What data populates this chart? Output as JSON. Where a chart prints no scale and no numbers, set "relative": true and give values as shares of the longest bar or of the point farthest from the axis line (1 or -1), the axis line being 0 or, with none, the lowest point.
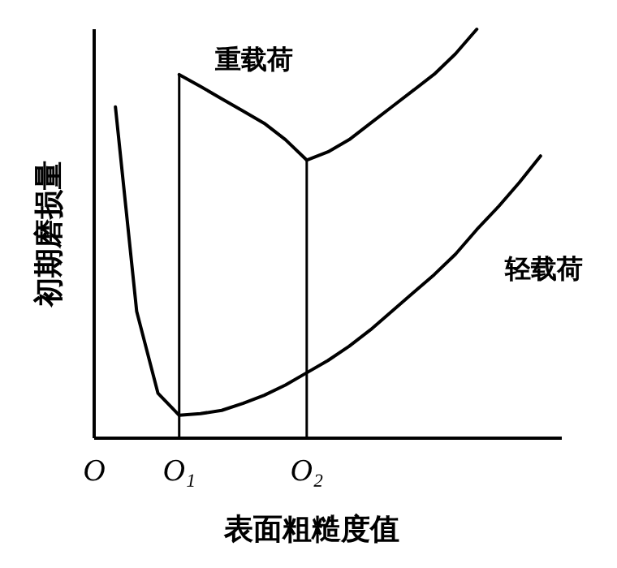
{
  "chart_data": {
    "type": "line",
    "relative": true,
    "xlabel": "表面粗糙度值",
    "ylabel": "初期磨损量",
    "legend": false,
    "marker": "none",
    "line_style": "solid",
    "categories": [
      "O",
      null,
      null,
      null,
      "O₁",
      null,
      null,
      null,
      null,
      null,
      "O₂",
      null,
      null,
      null,
      null,
      null,
      null,
      null,
      null,
      null,
      null,
      null,
      null
    ],
    "series": [
      {
        "name": "轻载荷",
        "color": "#000000",
        "values": [
          null,
          0.81,
          0.31,
          0.11,
          0.056,
          0.06,
          0.068,
          0.085,
          0.105,
          0.13,
          0.16,
          0.19,
          0.225,
          0.265,
          0.31,
          0.355,
          0.4,
          0.45,
          0.51,
          0.565,
          0.625,
          0.69,
          null
        ]
      },
      {
        "name": "重载荷",
        "color": "#000000",
        "values": [
          null,
          null,
          null,
          null,
          0.889,
          0.86,
          0.83,
          0.8,
          0.77,
          0.73,
          0.68,
          0.7,
          0.73,
          0.77,
          0.81,
          0.85,
          0.89,
          0.94,
          1,
          null,
          null,
          null,
          null
        ]
      }
    ],
    "ref_lines": [
      {
        "axis": "x",
        "value": "O₁",
        "color": "#000000"
      },
      {
        "axis": "x",
        "value": "O₂",
        "color": "#000000"
      }
    ]
  }
}
